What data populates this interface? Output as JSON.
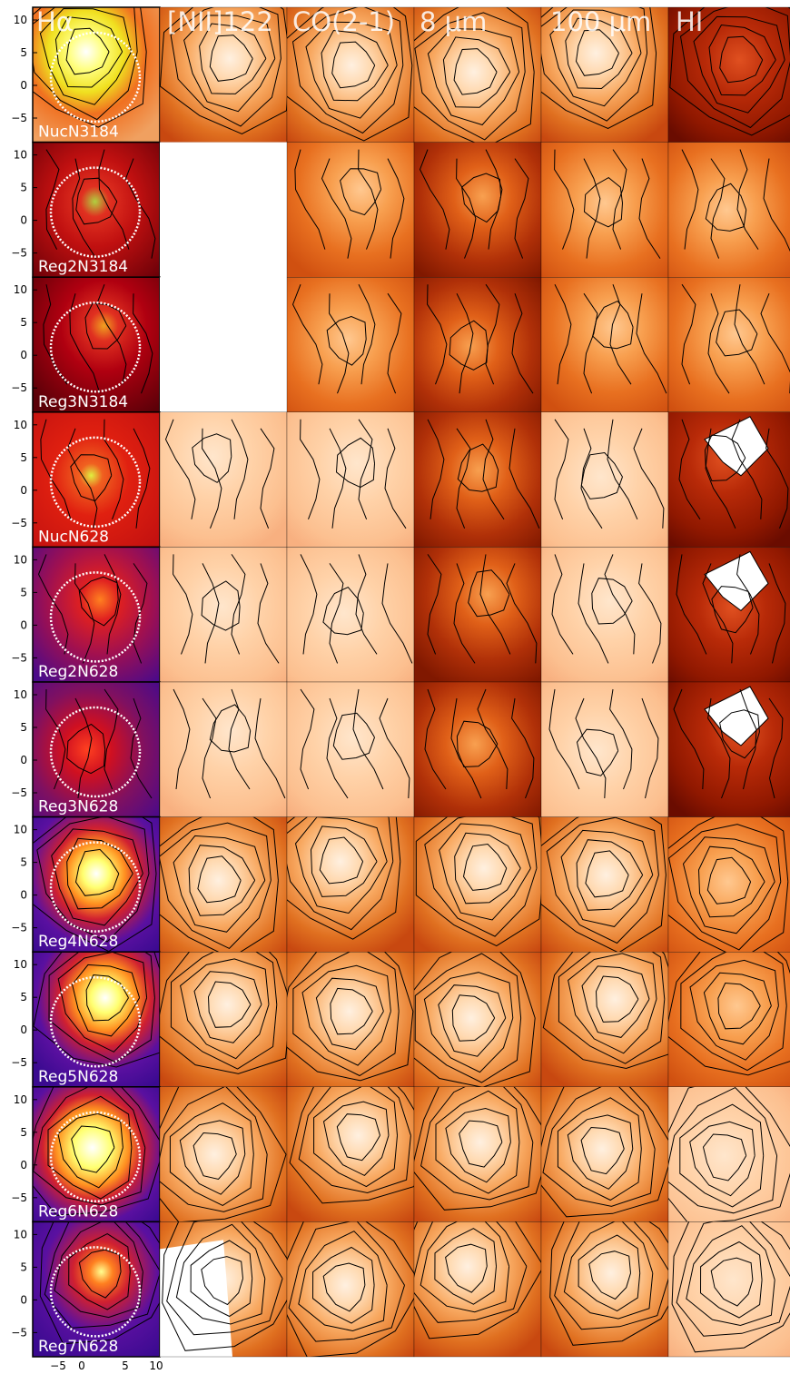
{
  "figure": {
    "columns": [
      {
        "key": "ha",
        "label": "Hα"
      },
      {
        "key": "nii",
        "label": "[NII]122"
      },
      {
        "key": "co",
        "label": "CO(2-1)"
      },
      {
        "key": "8um",
        "label": "8 μm"
      },
      {
        "key": "100um",
        "label": "100 μm"
      },
      {
        "key": "hi",
        "label": "HI"
      }
    ],
    "rows": [
      {
        "label": "NucN3184",
        "nii_available": true,
        "ha_map": "yellow-white core, orange field",
        "hi_masked": false
      },
      {
        "label": "Reg2N3184",
        "nii_available": false,
        "ha_map": "dark red field, red-yellow knot",
        "hi_masked": false
      },
      {
        "label": "Reg3N3184",
        "nii_available": false,
        "ha_map": "dark red field, red knot",
        "hi_masked": false
      },
      {
        "label": "NucN628",
        "nii_available": true,
        "ha_map": "red field, yellow knots",
        "hi_masked": true
      },
      {
        "label": "Reg2N628",
        "nii_available": true,
        "ha_map": "purple field, red knots",
        "hi_masked": true
      },
      {
        "label": "Reg3N628",
        "nii_available": true,
        "ha_map": "purple field, red clumps",
        "hi_masked": true
      },
      {
        "label": "Reg4N628",
        "nii_available": true,
        "ha_map": "purple field, yellow-white knot",
        "hi_masked": false
      },
      {
        "label": "Reg5N628",
        "nii_available": true,
        "ha_map": "purple field, yellow-white knot",
        "hi_masked": false
      },
      {
        "label": "Reg6N628",
        "nii_available": true,
        "ha_map": "purple field, bright yellow knot",
        "hi_masked": false
      },
      {
        "label": "Reg7N628",
        "nii_available": true,
        "ha_map": "purple field, yellow knot",
        "hi_masked": false
      }
    ],
    "y_ticks": [
      "10",
      "5",
      "0",
      "−5"
    ],
    "x_ticks": [
      "−5",
      "0",
      "5",
      "10"
    ],
    "colors": {
      "ha_purple": "#4a0a8a",
      "ha_red": "#cc1a00",
      "ha_yellow": "#ffff88",
      "map_dark": "#8b1a00",
      "map_mid": "#e0701a",
      "map_light": "#ffd9b0",
      "contour": "#000000",
      "aperture": "#ffffff"
    }
  }
}
